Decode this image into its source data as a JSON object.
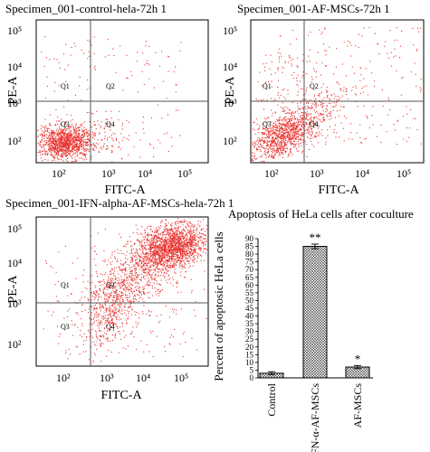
{
  "chart_data": [
    {
      "type": "scatter",
      "title": "Specimen_001-control-hela-72h 1",
      "xlabel": "FITC-A",
      "ylabel": "PE-A",
      "x_scale": "log",
      "y_scale": "log",
      "xticks": [
        "10²",
        "10³",
        "10⁴",
        "10⁵"
      ],
      "yticks": [
        "10²",
        "10³",
        "10⁴",
        "10⁵"
      ],
      "quadrant_labels": [
        "Q1",
        "Q2",
        "Q3",
        "Q4"
      ],
      "population": "low FITC / low PE cluster (viable cells)"
    },
    {
      "type": "scatter",
      "title": "Specimen_001-AF-MSCs-72h 1",
      "xlabel": "FITC-A",
      "ylabel": "PE-A",
      "x_scale": "log",
      "y_scale": "log",
      "xticks": [
        "10²",
        "10³",
        "10⁴",
        "10⁵"
      ],
      "yticks": [
        "10²",
        "10³",
        "10⁴",
        "10⁵"
      ],
      "quadrant_labels": [
        "Q1",
        "Q2",
        "Q3",
        "Q4"
      ],
      "population": "mostly low FITC / low PE with tail into Q2"
    },
    {
      "type": "scatter",
      "title": "Specimen_001-IFN-alpha-AF-MSCs-hela-72h 1",
      "xlabel": "FITC-A",
      "ylabel": "PE-A",
      "x_scale": "log",
      "y_scale": "log",
      "xticks": [
        "10²",
        "10³",
        "10⁴",
        "10⁵"
      ],
      "yticks": [
        "10²",
        "10³",
        "10⁴",
        "10⁵"
      ],
      "quadrant_labels": [
        "Q1",
        "Q2",
        "Q3",
        "Q4"
      ],
      "population": "dense cluster in Q2 (high FITC / high PE)"
    },
    {
      "type": "bar",
      "title": "Apoptosis of HeLa cells after coculture",
      "ylabel": "Percent of apoptosic HeLa cells",
      "categories": [
        "Control",
        "IFN-α-AF-MSCs",
        "AF-MSCs"
      ],
      "values": [
        3,
        85,
        7
      ],
      "errors": [
        1,
        1.5,
        1
      ],
      "significance": [
        "",
        "**",
        "*"
      ],
      "ylim": [
        0,
        90
      ],
      "yticks": [
        0,
        5,
        10,
        15,
        20,
        25,
        30,
        35,
        40,
        45,
        50,
        55,
        60,
        65,
        70,
        75,
        80,
        85,
        90
      ]
    }
  ],
  "colors": {
    "dot": "#e8322f",
    "quadrant_line": "#555555"
  }
}
